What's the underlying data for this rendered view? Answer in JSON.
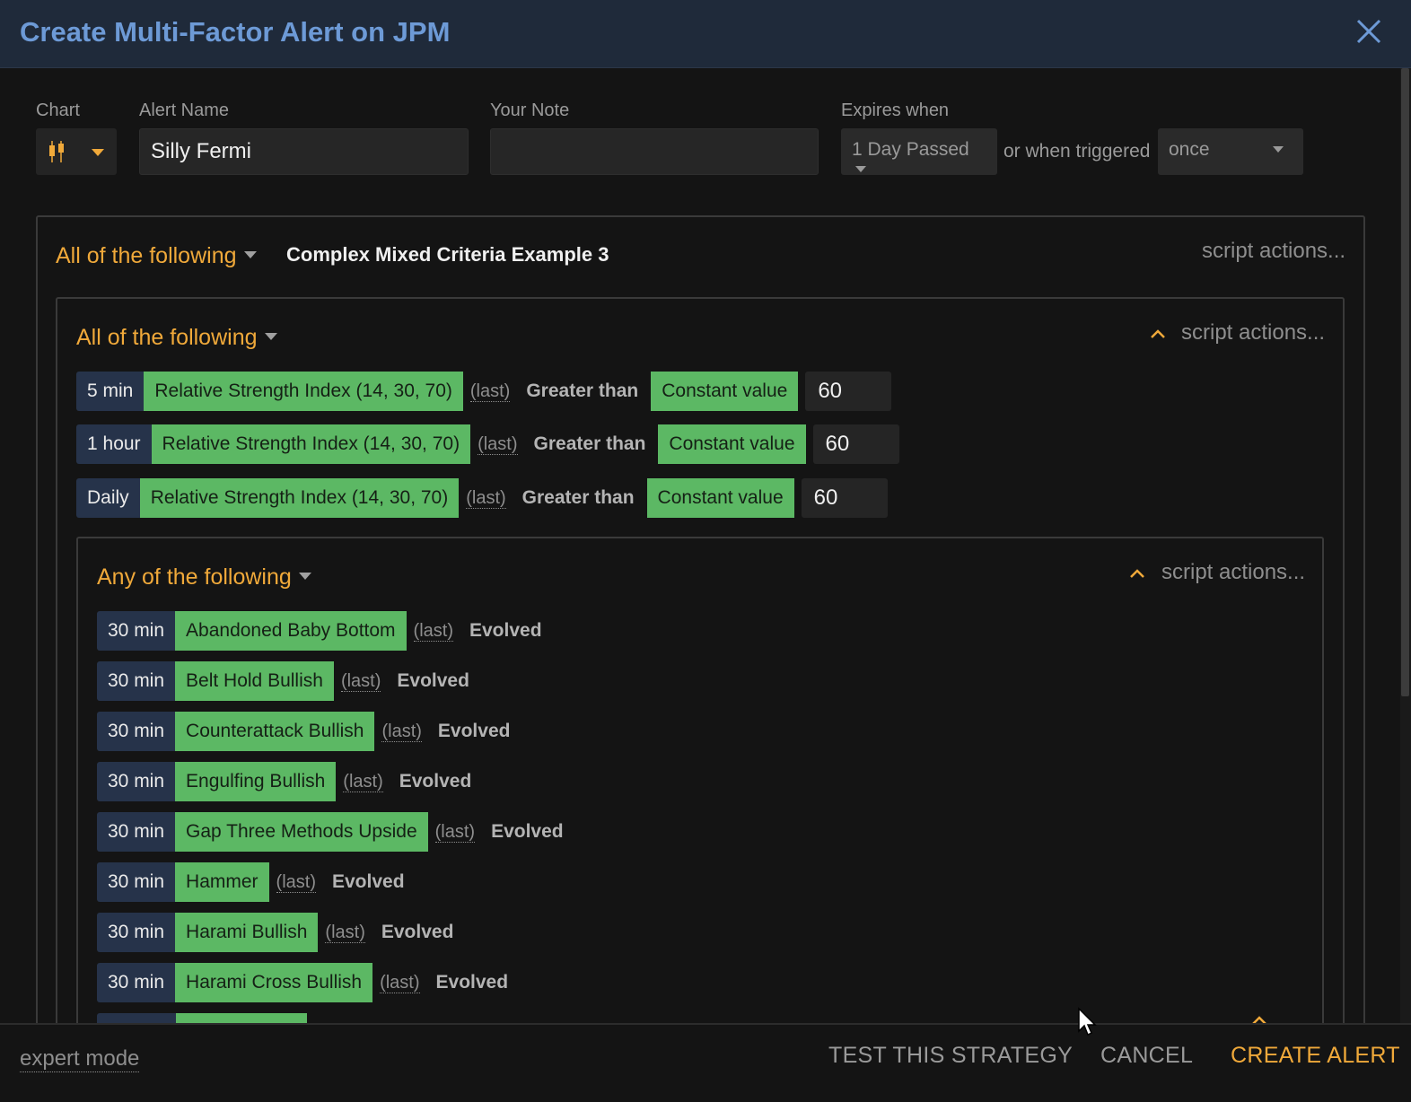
{
  "dialog": {
    "title": "Create Multi-Factor Alert on JPM"
  },
  "form": {
    "chart_label": "Chart",
    "alert_name_label": "Alert Name",
    "alert_name_value": "Silly Fermi",
    "note_label": "Your Note",
    "note_value": "",
    "expires_label": "Expires when",
    "expires_value": "1 Day Passed",
    "or_triggered_text": "or when triggered",
    "trigger_value": "once"
  },
  "outer_group": {
    "mode": "All of the following",
    "name": "Complex Mixed Criteria Example 3",
    "script_actions": "script actions..."
  },
  "inner_group": {
    "mode": "All of the following",
    "script_actions": "script actions...",
    "rows": [
      {
        "timeframe": "5 min",
        "indicator": "Relative Strength Index (14, 30, 70)",
        "modifier": "(last)",
        "operator": "Greater than",
        "value_type": "Constant value",
        "value": "60"
      },
      {
        "timeframe": "1 hour",
        "indicator": "Relative Strength Index (14, 30, 70)",
        "modifier": "(last)",
        "operator": "Greater than",
        "value_type": "Constant value",
        "value": "60"
      },
      {
        "timeframe": "Daily",
        "indicator": "Relative Strength Index (14, 30, 70)",
        "modifier": "(last)",
        "operator": "Greater than",
        "value_type": "Constant value",
        "value": "60"
      }
    ]
  },
  "any_group": {
    "mode": "Any of the following",
    "script_actions": "script actions...",
    "rows": [
      {
        "timeframe": "30 min",
        "pattern": "Abandoned Baby Bottom",
        "modifier": "(last)",
        "status": "Evolved"
      },
      {
        "timeframe": "30 min",
        "pattern": "Belt Hold Bullish",
        "modifier": "(last)",
        "status": "Evolved"
      },
      {
        "timeframe": "30 min",
        "pattern": "Counterattack Bullish",
        "modifier": "(last)",
        "status": "Evolved"
      },
      {
        "timeframe": "30 min",
        "pattern": "Engulfing Bullish",
        "modifier": "(last)",
        "status": "Evolved"
      },
      {
        "timeframe": "30 min",
        "pattern": "Gap Three Methods Upside",
        "modifier": "(last)",
        "status": "Evolved"
      },
      {
        "timeframe": "30 min",
        "pattern": "Hammer",
        "modifier": "(last)",
        "status": "Evolved"
      },
      {
        "timeframe": "30 min",
        "pattern": "Harami Bullish",
        "modifier": "(last)",
        "status": "Evolved"
      },
      {
        "timeframe": "30 min",
        "pattern": "Harami Cross Bullish",
        "modifier": "(last)",
        "status": "Evolved"
      }
    ]
  },
  "footer": {
    "expert_mode": "expert mode",
    "test_button": "TEST THIS STRATEGY",
    "cancel_button": "CANCEL",
    "create_button": "CREATE ALERT"
  },
  "colors": {
    "header_bg": "#1f2a3a",
    "title": "#6d9ad6",
    "accent_orange": "#f0a93a",
    "green_chip": "#5cb864",
    "timeframe_chip": "#26334a",
    "background": "#141414"
  },
  "icons": {
    "close": "close-icon",
    "chart": "candlestick-icon",
    "collapse": "chevron-up-icon",
    "caret": "caret-down-icon"
  }
}
